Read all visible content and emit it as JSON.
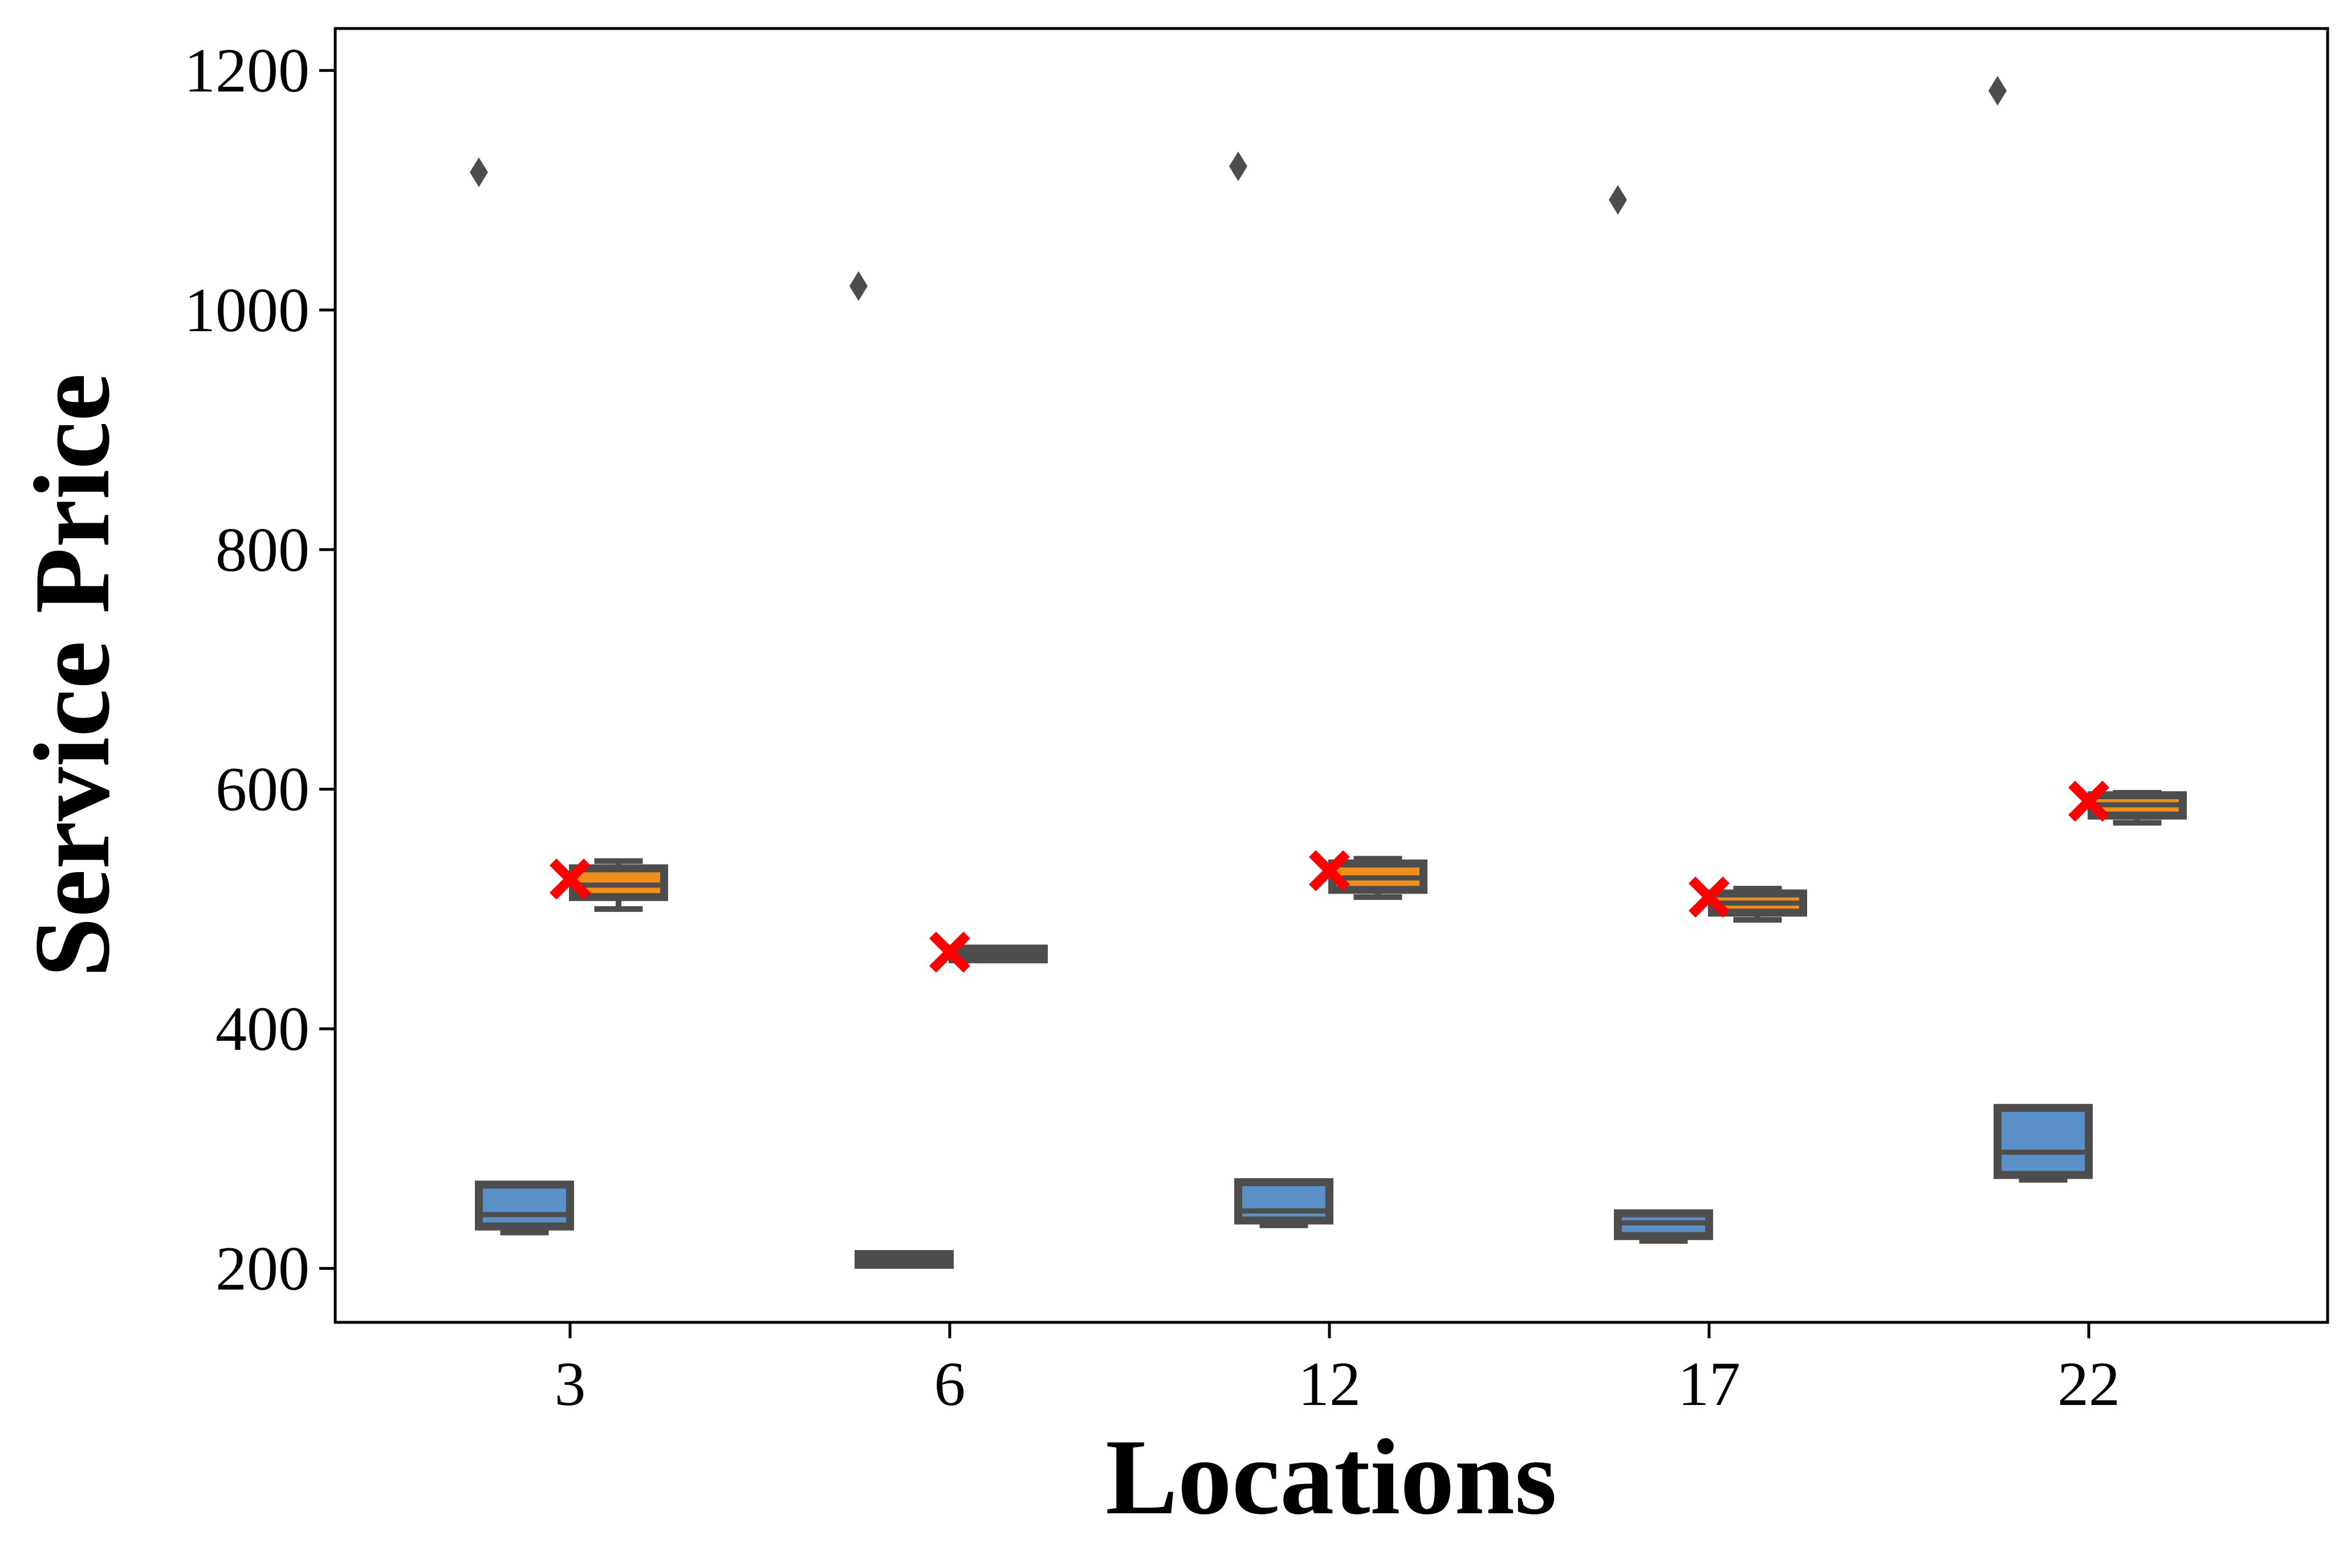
{
  "chart_data": {
    "type": "box",
    "xlabel": "Locations",
    "ylabel": "Service Price",
    "ylim": [
      155,
      1235
    ],
    "y_ticks": [
      200,
      400,
      600,
      800,
      1000,
      1200
    ],
    "categories": [
      "3",
      "6",
      "12",
      "17",
      "22"
    ],
    "grid": false,
    "legend": "none",
    "series": [
      {
        "color": "#5b8fc7",
        "boxes": [
          {
            "whisker_low": 230,
            "q1": 235,
            "median": 245,
            "q3": 270,
            "whisker_high": 270,
            "outliers": [
              1115
            ]
          },
          {
            "whisker_low": 203,
            "q1": 203,
            "median": 207,
            "q3": 212,
            "whisker_high": 212,
            "outliers": [
              1020
            ]
          },
          {
            "whisker_low": 236,
            "q1": 240,
            "median": 248,
            "q3": 272,
            "whisker_high": 272,
            "outliers": [
              1120
            ]
          },
          {
            "whisker_low": 223,
            "q1": 227,
            "median": 238,
            "q3": 246,
            "whisker_high": 246,
            "outliers": [
              1092
            ]
          },
          {
            "whisker_low": 274,
            "q1": 278,
            "median": 297,
            "q3": 334,
            "whisker_high": 334,
            "outliers": [
              1183
            ]
          }
        ]
      },
      {
        "color": "#f28e1c",
        "boxes": [
          {
            "whisker_low": 500,
            "q1": 510,
            "median": 520,
            "q3": 534,
            "whisker_high": 540,
            "outliers": []
          },
          {
            "whisker_low": 458,
            "q1": 458,
            "median": 463,
            "q3": 467,
            "whisker_high": 467,
            "outliers": []
          },
          {
            "whisker_low": 510,
            "q1": 516,
            "median": 526,
            "q3": 538,
            "whisker_high": 542,
            "outliers": []
          },
          {
            "whisker_low": 491,
            "q1": 497,
            "median": 505,
            "q3": 513,
            "whisker_high": 517,
            "outliers": []
          },
          {
            "whisker_low": 572,
            "q1": 578,
            "median": 587,
            "q3": 595,
            "whisker_high": 597,
            "outliers": []
          }
        ]
      }
    ],
    "markers": {
      "color": "#ff0000",
      "symbol": "x",
      "values": [
        525,
        464,
        532,
        510,
        590
      ]
    }
  }
}
